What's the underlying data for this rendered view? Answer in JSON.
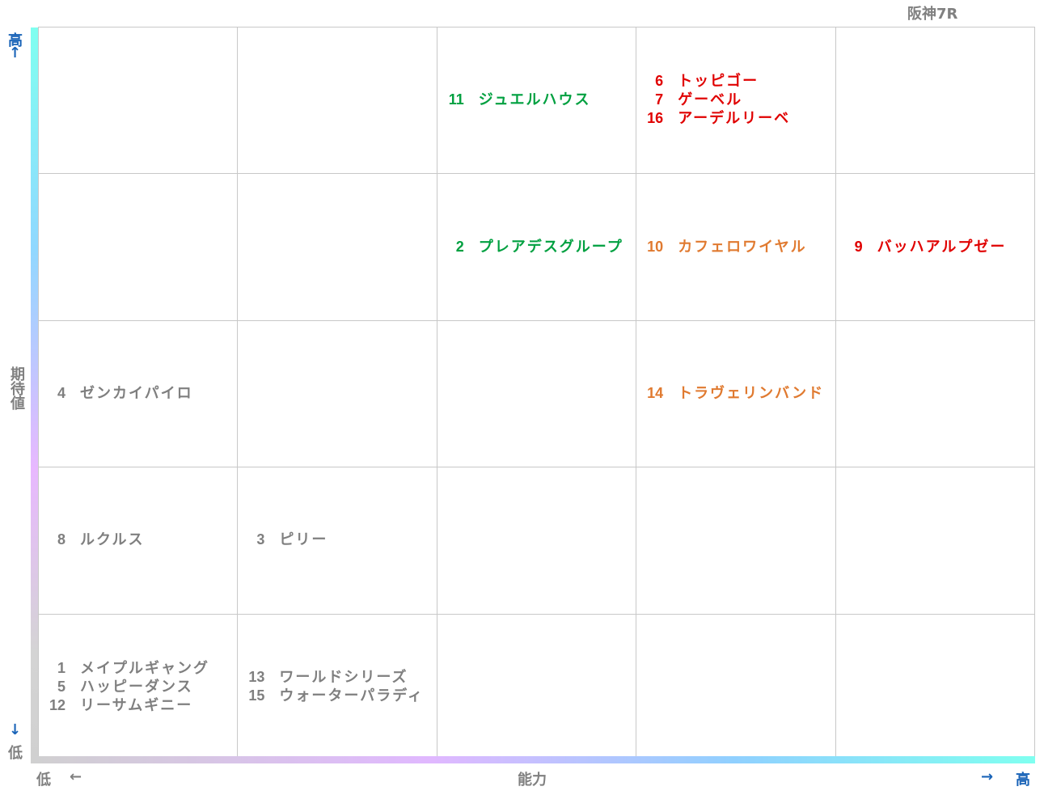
{
  "title": "阪神7R",
  "y_axis": {
    "high": "高",
    "up_arrow": "↑",
    "label": "期待値",
    "down_arrow": "↓",
    "low": "低"
  },
  "x_axis": {
    "low": "低",
    "left_arrow": "←",
    "label": "能力",
    "right_arrow": "→",
    "high": "高"
  },
  "cells": [
    {
      "row": 0,
      "col": 2,
      "entries": [
        {
          "number": 11,
          "name": "ジュエルハウス",
          "color": "#00a040"
        }
      ]
    },
    {
      "row": 0,
      "col": 3,
      "entries": [
        {
          "number": 6,
          "name": "トッピゴー",
          "color": "#e00000"
        },
        {
          "number": 7,
          "name": "ゲーベル",
          "color": "#e00000"
        },
        {
          "number": 16,
          "name": "アーデルリーベ",
          "color": "#e00000"
        }
      ]
    },
    {
      "row": 1,
      "col": 2,
      "entries": [
        {
          "number": 2,
          "name": "プレアデスグループ",
          "color": "#00a040"
        }
      ]
    },
    {
      "row": 1,
      "col": 3,
      "entries": [
        {
          "number": 10,
          "name": "カフェロワイヤル",
          "color": "#e07a30"
        }
      ]
    },
    {
      "row": 1,
      "col": 4,
      "entries": [
        {
          "number": 9,
          "name": "バッハアルプゼー",
          "color": "#e00000"
        }
      ]
    },
    {
      "row": 2,
      "col": 0,
      "entries": [
        {
          "number": 4,
          "name": "ゼンカイパイロ",
          "color": "#7f7f7f"
        }
      ]
    },
    {
      "row": 2,
      "col": 3,
      "entries": [
        {
          "number": 14,
          "name": "トラヴェリンバンド",
          "color": "#e07a30"
        }
      ]
    },
    {
      "row": 3,
      "col": 0,
      "entries": [
        {
          "number": 8,
          "name": "ルクルス",
          "color": "#7f7f7f"
        }
      ]
    },
    {
      "row": 3,
      "col": 1,
      "entries": [
        {
          "number": 3,
          "name": "ピリー",
          "color": "#7f7f7f"
        }
      ]
    },
    {
      "row": 4,
      "col": 0,
      "entries": [
        {
          "number": 1,
          "name": "メイプルギャング",
          "color": "#7f7f7f"
        },
        {
          "number": 5,
          "name": "ハッピーダンス",
          "color": "#7f7f7f"
        },
        {
          "number": 12,
          "name": "リーサムギニー",
          "color": "#7f7f7f"
        }
      ]
    },
    {
      "row": 4,
      "col": 1,
      "entries": [
        {
          "number": 13,
          "name": "ワールドシリーズ",
          "color": "#7f7f7f"
        },
        {
          "number": 15,
          "name": "ウォーターパラディ",
          "color": "#7f7f7f"
        }
      ]
    }
  ]
}
